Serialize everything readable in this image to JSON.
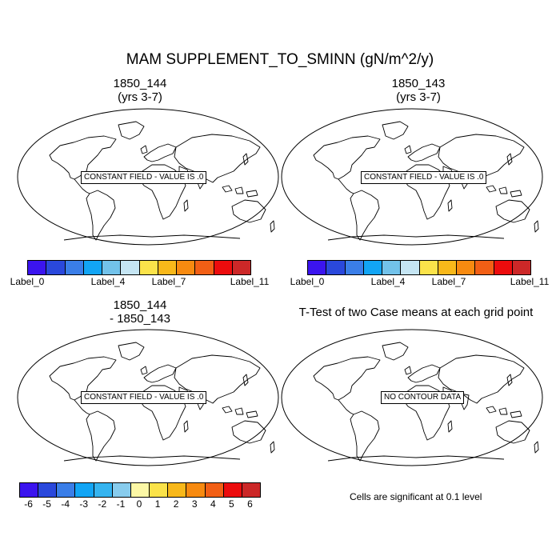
{
  "main_title": "MAM SUPPLEMENT_TO_SMINN (gN/m^2/y)",
  "panels": [
    {
      "title_line1": "1850_144",
      "title_line2": "(yrs 3-7)",
      "note": "CONSTANT FIELD - VALUE IS .0"
    },
    {
      "title_line1": "1850_143",
      "title_line2": "(yrs 3-7)",
      "note": "CONSTANT FIELD - VALUE IS .0"
    },
    {
      "title_line1": "1850_144",
      "title_line2": "- 1850_143",
      "note": "CONSTANT FIELD - VALUE IS .0"
    },
    {
      "title_line1": "T-Test of two Case means at each grid point",
      "title_line2": "",
      "note": "NO CONTOUR DATA"
    }
  ],
  "colorbar_case": {
    "colors": [
      "#3b14ef",
      "#2a48dc",
      "#3a7ee8",
      "#12a5f5",
      "#72c2ea",
      "#c5e5f3",
      "#fbe34a",
      "#f8b81a",
      "#f78a10",
      "#f25f15",
      "#ec0c0d",
      "#cc2828"
    ],
    "labels": [
      "Label_0",
      "Label_4",
      "Label_7",
      "Label_11"
    ]
  },
  "colorbar_diff": {
    "colors": [
      "#3b14ef",
      "#2a48dc",
      "#3a7ee8",
      "#12a5f5",
      "#35b4f0",
      "#88cced",
      "#fcf8a6",
      "#fbe34a",
      "#f8b81a",
      "#f78a10",
      "#f25f15",
      "#ec0c0d",
      "#cc2828"
    ],
    "labels": [
      "-6",
      "-5",
      "-4",
      "-3",
      "-2",
      "-1",
      "0",
      "1",
      "2",
      "3",
      "4",
      "5",
      "6"
    ]
  },
  "significance_note": "Cells are significant at 0.1 level"
}
